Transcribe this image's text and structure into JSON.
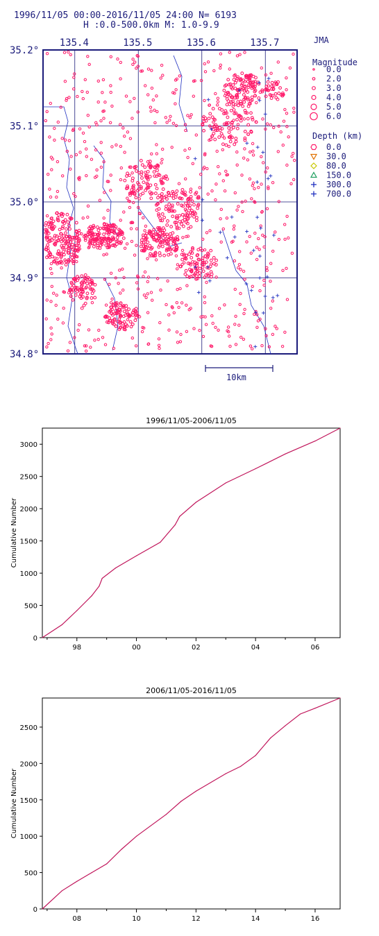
{
  "header": {
    "line1": "1996/11/05 00:00-2016/11/05 24:00    N=  6193",
    "line2": "H :0.0-500.0km  M: 1.0-9.9"
  },
  "map": {
    "agency": "JMA",
    "lon_ticks": [
      "135.4",
      "135.5",
      "135.6",
      "135.7"
    ],
    "lat_ticks": [
      "35.2°",
      "35.1°",
      "35.0°",
      "34.9°",
      "34.8°"
    ],
    "lon_range": [
      135.35,
      135.75
    ],
    "lat_range": [
      34.8,
      35.2
    ],
    "scale_label": "10km",
    "event_color": "#ff1a6a",
    "legend_magnitude_title": "Magnitude",
    "legend_magnitudes": [
      "0.0",
      "2.0",
      "3.0",
      "4.0",
      "5.0",
      "6.0"
    ],
    "legend_depth_title": "Depth (km)",
    "legend_depths": [
      {
        "label": "0.0",
        "symbol": "hexagon",
        "color": "#ff1a6a"
      },
      {
        "label": "30.0",
        "symbol": "triangle-down",
        "color": "#e07000"
      },
      {
        "label": "80.0",
        "symbol": "diamond",
        "color": "#c8c800"
      },
      {
        "label": "150.0",
        "symbol": "triangle-up",
        "color": "#20a060"
      },
      {
        "label": "300.0",
        "symbol": "plus",
        "color": "#2030c0"
      },
      {
        "label": "700.0",
        "symbol": "plus",
        "color": "#2030c0"
      }
    ]
  },
  "chart_data": [
    {
      "type": "line",
      "title": "1996/11/05-2006/11/05",
      "ylabel": "Cumulative Number",
      "xlabel": "",
      "x_tick_labels": [
        "98",
        "00",
        "02",
        "04",
        "06"
      ],
      "x_tick_years": [
        1998,
        2000,
        2002,
        2004,
        2006
      ],
      "xlim": [
        1996.84,
        2006.84
      ],
      "y_ticks": [
        0,
        500,
        1000,
        1500,
        2000,
        2500,
        3000
      ],
      "ylim": [
        0,
        3250
      ],
      "color": "#c0145a",
      "x": [
        1996.84,
        1997.5,
        1998.0,
        1998.5,
        1998.75,
        1998.85,
        1999.3,
        2000.0,
        2000.8,
        2001.3,
        2001.45,
        2002.0,
        2003.0,
        2004.0,
        2005.0,
        2006.0,
        2006.84
      ],
      "y": [
        0,
        200,
        420,
        650,
        800,
        920,
        1080,
        1270,
        1480,
        1750,
        1880,
        2100,
        2400,
        2620,
        2850,
        3050,
        3250
      ]
    },
    {
      "type": "line",
      "title": "2006/11/05-2016/11/05",
      "ylabel": "Cumulative Number",
      "xlabel": "",
      "x_tick_labels": [
        "08",
        "10",
        "12",
        "14",
        "16"
      ],
      "x_tick_years": [
        2008,
        2010,
        2012,
        2014,
        2016
      ],
      "xlim": [
        2006.84,
        2016.84
      ],
      "y_ticks": [
        0,
        500,
        1000,
        1500,
        2000,
        2500
      ],
      "ylim": [
        0,
        2900
      ],
      "color": "#c0145a",
      "x": [
        2006.84,
        2007.5,
        2008.0,
        2008.5,
        2009.0,
        2009.5,
        2010.0,
        2011.0,
        2011.5,
        2012.0,
        2013.0,
        2013.5,
        2014.0,
        2014.5,
        2015.0,
        2015.5,
        2016.0,
        2016.84
      ],
      "y": [
        0,
        250,
        380,
        500,
        620,
        820,
        1000,
        1300,
        1480,
        1620,
        1860,
        1960,
        2110,
        2350,
        2520,
        2680,
        2760,
        2900
      ]
    }
  ]
}
